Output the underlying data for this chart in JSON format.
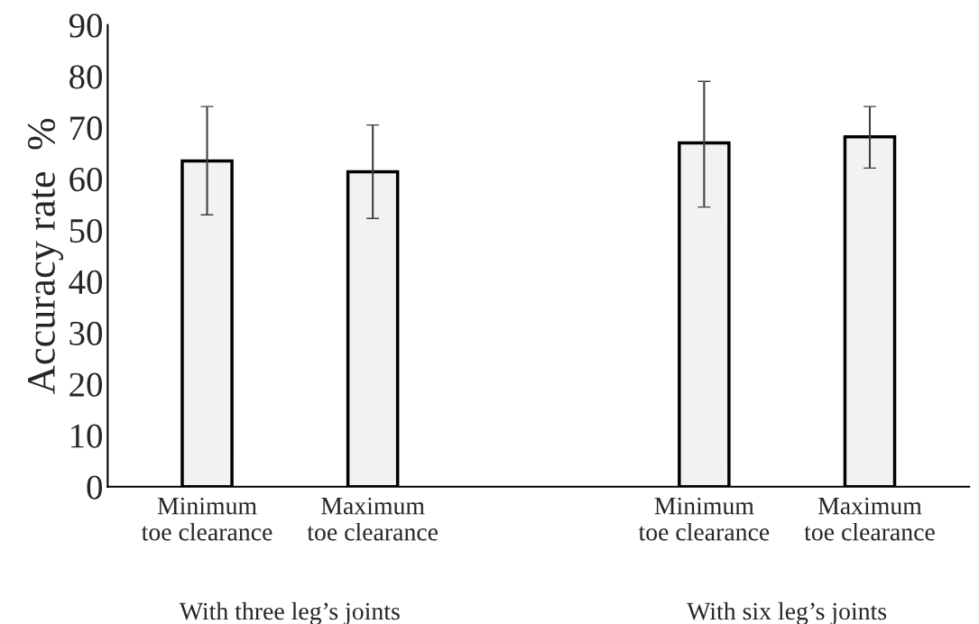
{
  "chart_data": {
    "type": "bar",
    "ylabel": "Accuracy rate  %",
    "categories": [
      "Minimum\ntoe clearance",
      "Maximum\ntoe clearance",
      null,
      "Minimum\ntoe clearance",
      "Maximum\ntoe clearance"
    ],
    "values": [
      63.5,
      61.4,
      null,
      67.0,
      68.2
    ],
    "errors": [
      [
        53.0,
        74.1
      ],
      [
        52.3,
        70.5
      ],
      null,
      [
        54.5,
        79.0
      ],
      [
        62.1,
        74.1
      ]
    ],
    "color": "#f2f2f2",
    "ylim": [
      0,
      90
    ],
    "yticks": [
      0,
      10,
      20,
      30,
      40,
      50,
      60,
      70,
      80,
      90
    ],
    "grid": false,
    "legend": false,
    "annotations": [
      "With three leg’s joints",
      "With six leg’s joints"
    ]
  }
}
